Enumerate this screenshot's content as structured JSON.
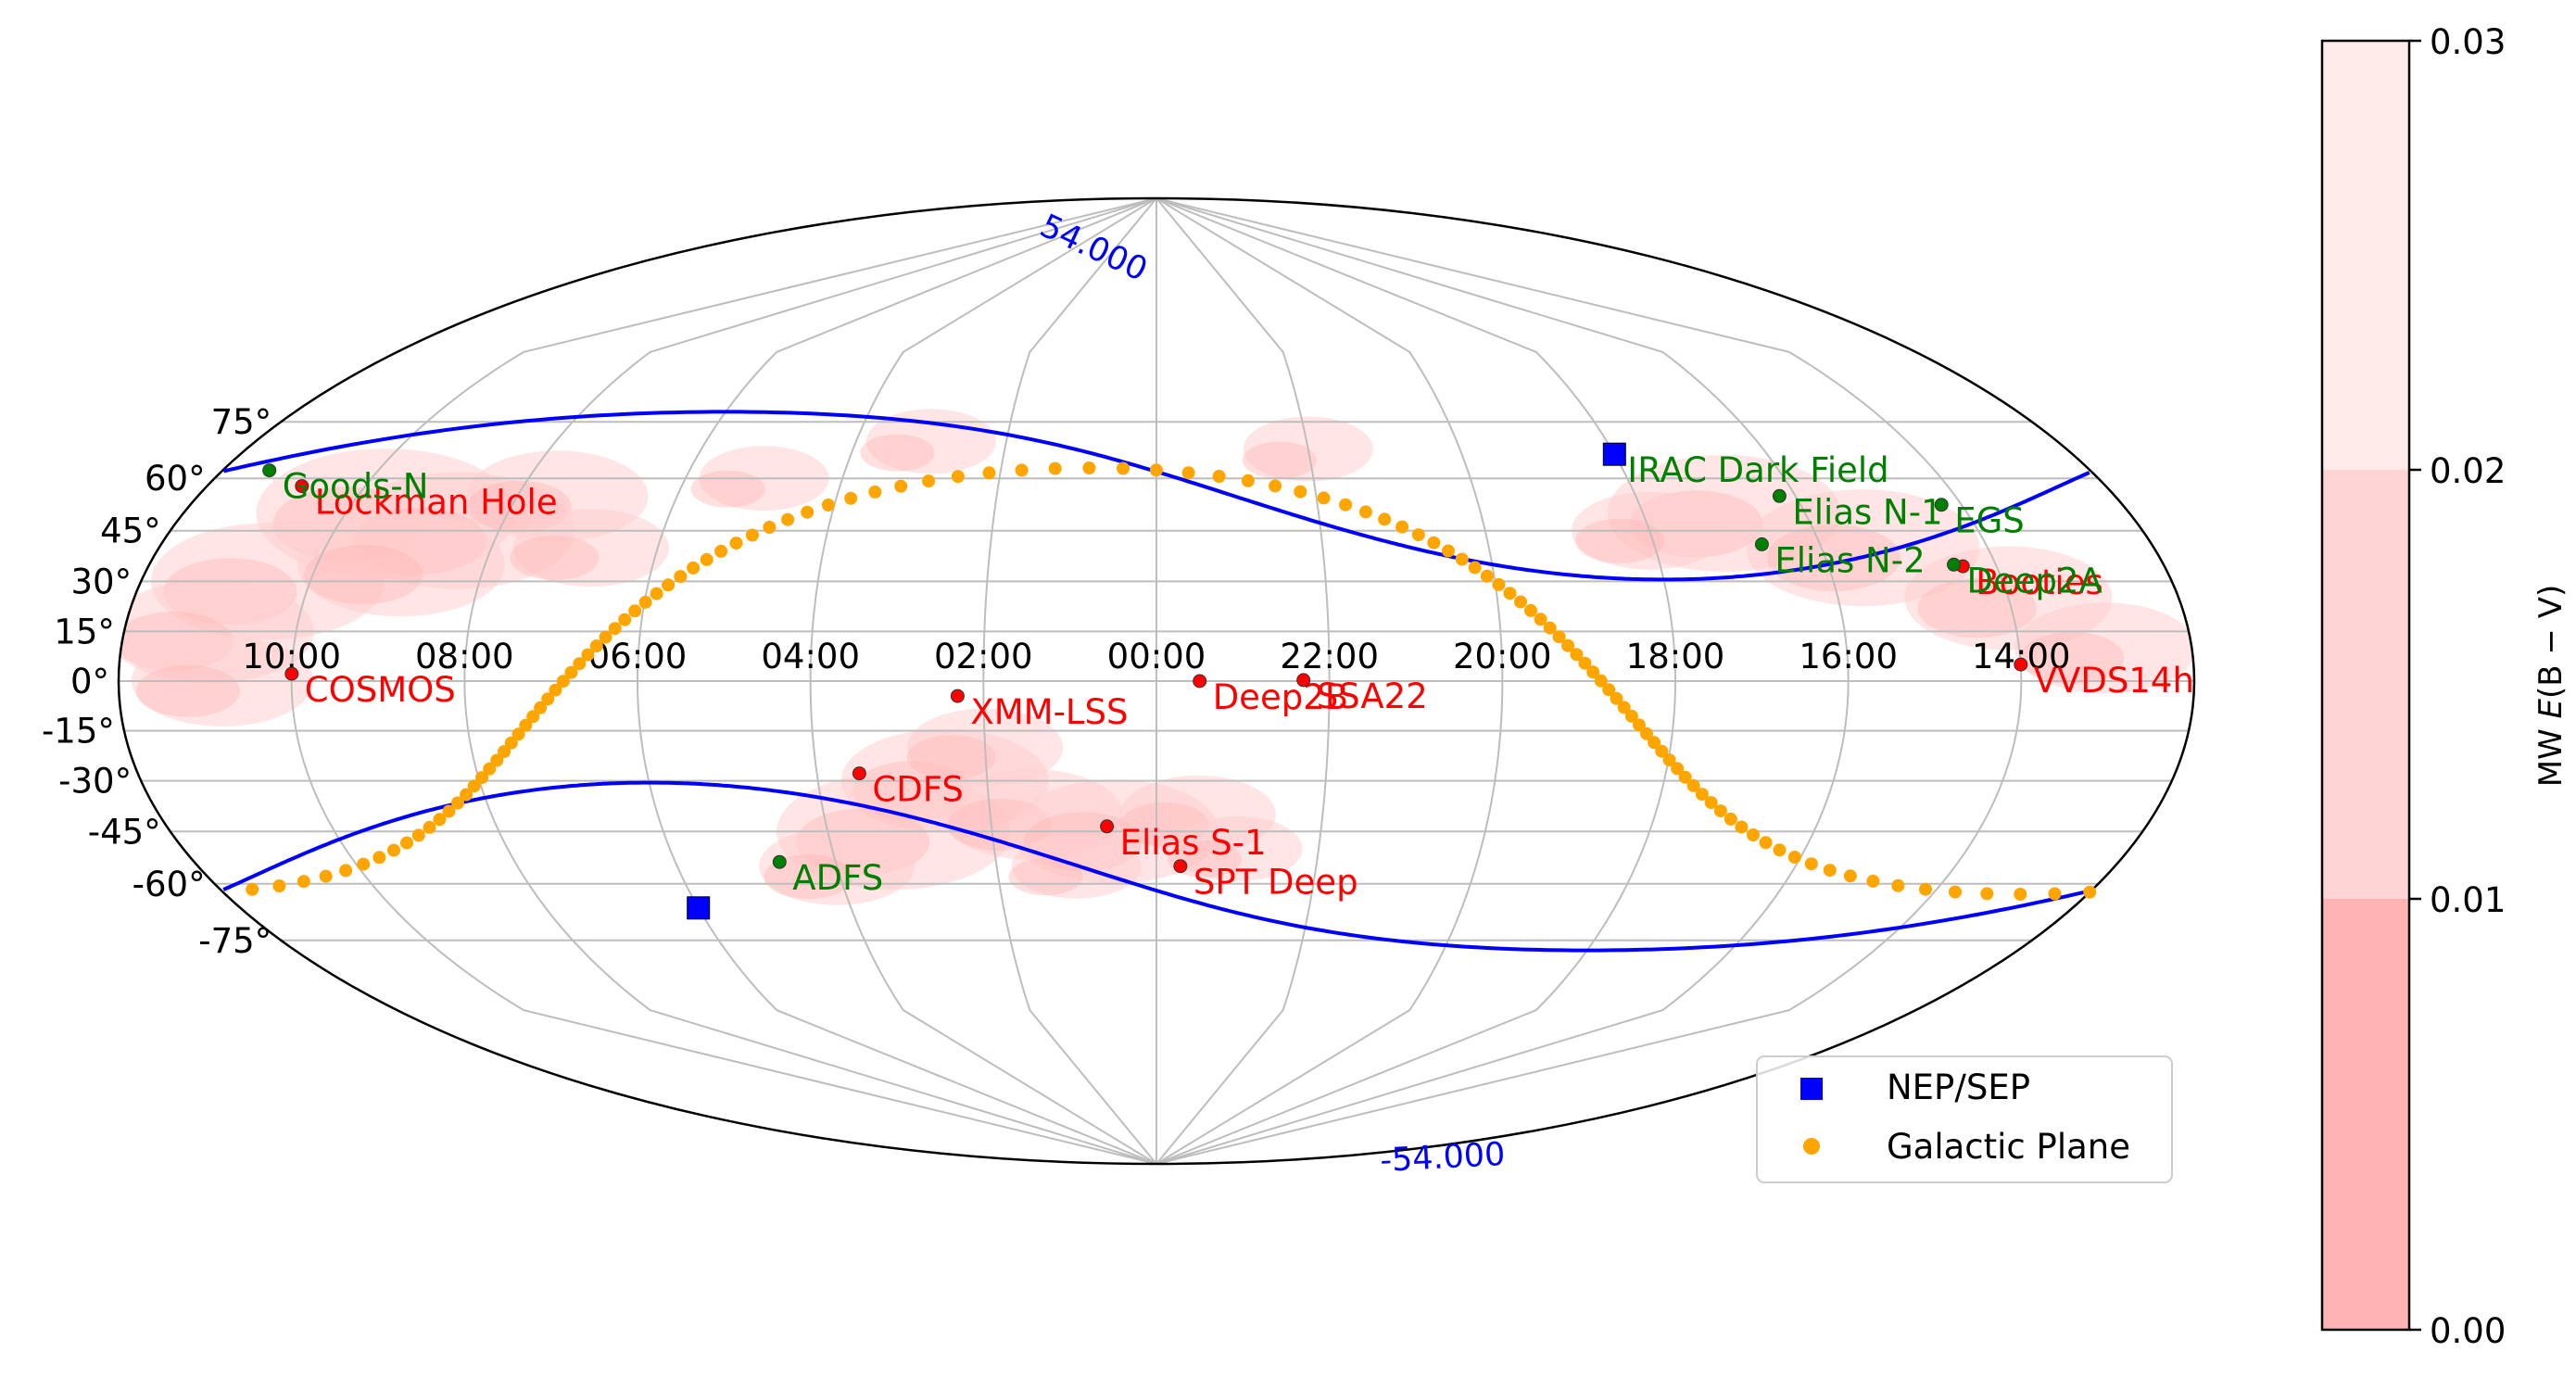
{
  "chart_data": {
    "type": "scatter",
    "projection": "mollweide",
    "xlabel": "",
    "ylabel": "",
    "ra_hours_range": [
      -12,
      12
    ],
    "dec_range": [
      -90,
      90
    ],
    "grid": true,
    "ra_tick_labels": [
      {
        "label": "10:00",
        "ra_hours": 10
      },
      {
        "label": "08:00",
        "ra_hours": 8
      },
      {
        "label": "06:00",
        "ra_hours": 6
      },
      {
        "label": "04:00",
        "ra_hours": 4
      },
      {
        "label": "02:00",
        "ra_hours": 2
      },
      {
        "label": "00:00",
        "ra_hours": 0
      },
      {
        "label": "22:00",
        "ra_hours": -2
      },
      {
        "label": "20:00",
        "ra_hours": -4
      },
      {
        "label": "18:00",
        "ra_hours": -6
      },
      {
        "label": "16:00",
        "ra_hours": -8
      },
      {
        "label": "14:00",
        "ra_hours": -10
      }
    ],
    "dec_tick_labels": [
      {
        "label": "75°",
        "dec": 75
      },
      {
        "label": "60°",
        "dec": 60
      },
      {
        "label": "45°",
        "dec": 45
      },
      {
        "label": "30°",
        "dec": 30
      },
      {
        "label": "15°",
        "dec": 15
      },
      {
        "label": "0°",
        "dec": 0
      },
      {
        "label": "-15°",
        "dec": -15
      },
      {
        "label": "-30°",
        "dec": -30
      },
      {
        "label": "-45°",
        "dec": -45
      },
      {
        "label": "-60°",
        "dec": -60
      },
      {
        "label": "-75°",
        "dec": -75
      }
    ],
    "fields_red": [
      {
        "name": "COSMOS",
        "ra_hours": 10.0,
        "dec": 2.2
      },
      {
        "name": "Lockman Hole",
        "ra_hours": 10.8,
        "dec": 57.8
      },
      {
        "name": "XMM-LSS",
        "ra_hours": 2.3,
        "dec": -4.5
      },
      {
        "name": "Deep2B",
        "ra_hours": -0.5,
        "dec": 0.0
      },
      {
        "name": "SSA22",
        "ra_hours": -1.7,
        "dec": 0.3
      },
      {
        "name": "CDFS",
        "ra_hours": 3.5,
        "dec": -27.8
      },
      {
        "name": "Elias S-1",
        "ra_hours": 0.6,
        "dec": -43.5
      },
      {
        "name": "SPT Deep",
        "ra_hours": -0.3,
        "dec": -55.0
      },
      {
        "name": "Booties",
        "ra_hours": -9.6,
        "dec": 34.5
      },
      {
        "name": "VVDS14h",
        "ra_hours": -10.0,
        "dec": 5.0
      }
    ],
    "fields_green": [
      {
        "name": "IRAC Dark Field",
        "ra_hours": -6.0,
        "dec": 66.6
      },
      {
        "name": "Goods-N",
        "ra_hours": -12.6,
        "dec": 62.2
      },
      {
        "name": "Elias N-1",
        "ra_hours": -7.8,
        "dec": 55.0
      },
      {
        "name": "EGS",
        "ra_hours": -9.75,
        "dec": 52.5
      },
      {
        "name": "Elias N-2",
        "ra_hours": -7.3,
        "dec": 41.0
      },
      {
        "name": "Deep2A",
        "ra_hours": -9.5,
        "dec": 35.0
      },
      {
        "name": "ADFS",
        "ra_hours": 4.7,
        "dec": -53.8
      }
    ],
    "nep_sep": [
      {
        "ra_hours": -6.0,
        "dec": 66.6
      },
      {
        "ra_hours": 6.0,
        "dec": -66.6
      }
    ],
    "contour": {
      "label_north": "54.000",
      "label_south": "-54.000",
      "color": "#0000ff"
    },
    "legend": {
      "placement": "lower-right",
      "entries": [
        {
          "label": "NEP/SEP",
          "color": "#0000ff",
          "marker": "square"
        },
        {
          "label": "Galactic Plane",
          "color": "#ffa500",
          "marker": "circle"
        }
      ]
    },
    "colorbar": {
      "label_prefix": "MW ",
      "label_italic": "E",
      "label_suffix": "(B − V)",
      "ticks": [
        "0.00",
        "0.01",
        "0.02",
        "0.03"
      ],
      "levels": [
        {
          "from": 0.0,
          "to": 0.01,
          "color": "#ffb3b3"
        },
        {
          "from": 0.01,
          "to": 0.02,
          "color": "#ffd4d4"
        },
        {
          "from": 0.02,
          "to": 0.03,
          "color": "#ffeaea"
        }
      ]
    },
    "colors": {
      "red_fields": "#ff0000",
      "green_fields": "#008000",
      "galactic_plane": "#ffa500",
      "grid": "#bdbdbd",
      "nep": "#0000ff"
    }
  }
}
